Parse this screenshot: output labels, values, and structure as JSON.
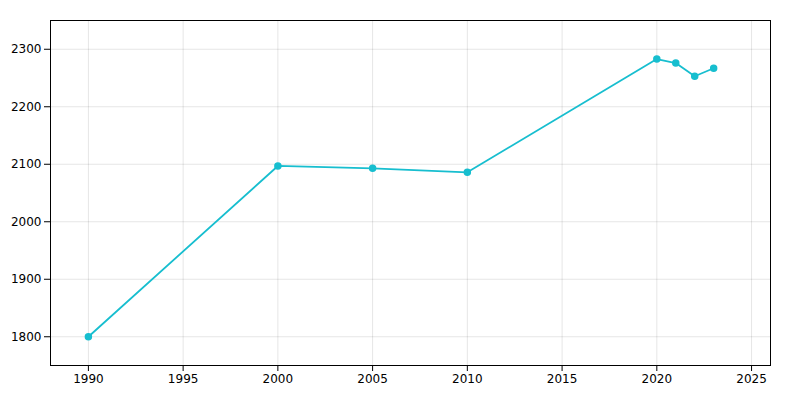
{
  "chart_data": {
    "type": "line",
    "x": [
      1990,
      2000,
      2005,
      2010,
      2020,
      2021,
      2022,
      2023
    ],
    "values": [
      1800,
      2097,
      2093,
      2086,
      2283,
      2276,
      2253,
      2267
    ],
    "color": "#17becf",
    "marker": "circle",
    "xlim": [
      1988,
      2026
    ],
    "ylim": [
      1750,
      2350
    ],
    "xticks": [
      1990,
      1995,
      2000,
      2005,
      2010,
      2015,
      2020,
      2025
    ],
    "yticks": [
      1800,
      1900,
      2000,
      2100,
      2200,
      2300
    ],
    "grid": true
  }
}
